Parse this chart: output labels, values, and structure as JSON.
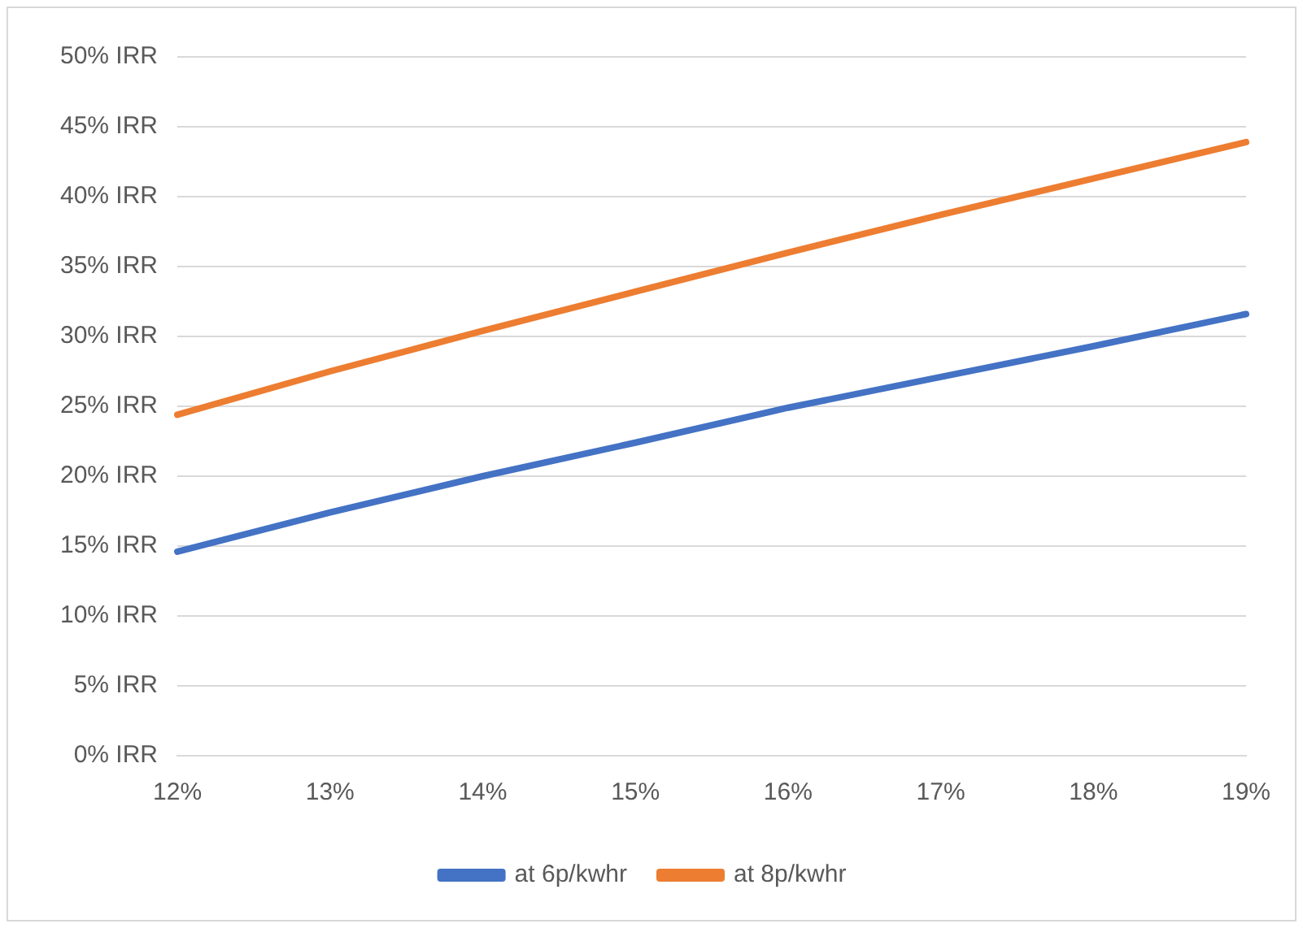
{
  "chart_data": {
    "type": "line",
    "categories": [
      "12%",
      "13%",
      "14%",
      "15%",
      "16%",
      "17%",
      "18%",
      "19%"
    ],
    "series": [
      {
        "name": "at 6p/kwhr",
        "color": "#4472c4",
        "values": [
          14.6,
          17.4,
          20.0,
          22.4,
          24.9,
          27.1,
          29.3,
          31.6
        ]
      },
      {
        "name": "at 8p/kwhr",
        "color": "#ed7d31",
        "values": [
          24.4,
          27.5,
          30.4,
          33.2,
          36.0,
          38.7,
          41.3,
          43.9
        ]
      }
    ],
    "ylim": [
      0,
      50
    ],
    "yticks": [
      {
        "value": 0,
        "label": "0% IRR"
      },
      {
        "value": 5,
        "label": "5% IRR"
      },
      {
        "value": 10,
        "label": "10% IRR"
      },
      {
        "value": 15,
        "label": "15% IRR"
      },
      {
        "value": 20,
        "label": "20% IRR"
      },
      {
        "value": 25,
        "label": "25% IRR"
      },
      {
        "value": 30,
        "label": "30% IRR"
      },
      {
        "value": 35,
        "label": "35% IRR"
      },
      {
        "value": 40,
        "label": "40% IRR"
      },
      {
        "value": 45,
        "label": "45% IRR"
      },
      {
        "value": 50,
        "label": "50% IRR"
      }
    ],
    "grid": "y",
    "legend": "bottom",
    "marker": "none",
    "line_style": "solid"
  }
}
